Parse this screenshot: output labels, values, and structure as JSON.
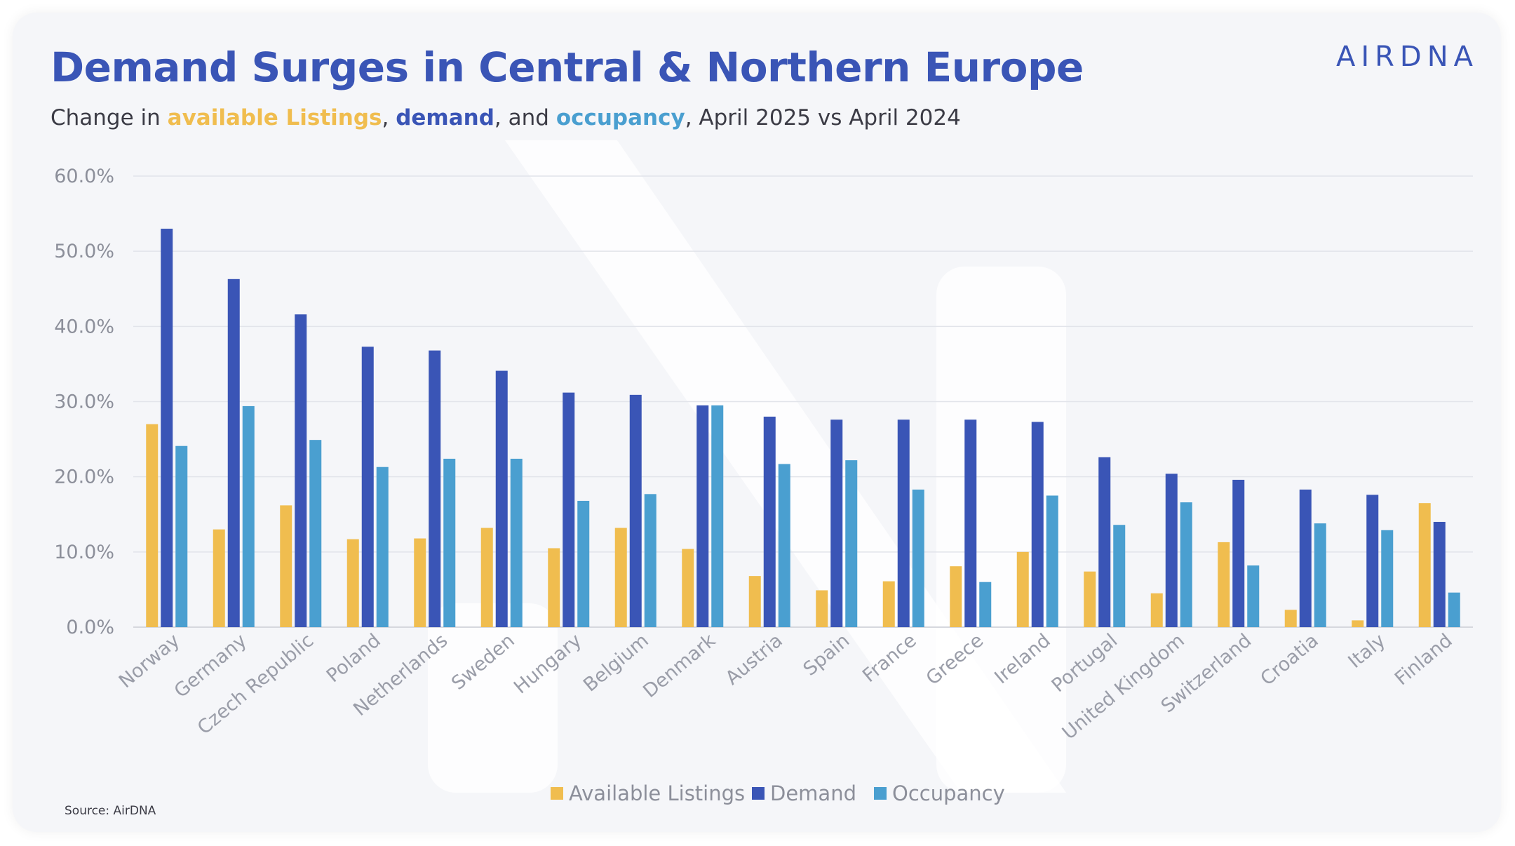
{
  "header": {
    "title": "Demand Surges in Central & Northern Europe",
    "subtitle": {
      "prefix": "Change in ",
      "listings": "available Listings",
      "sep1": ", ",
      "demand": "demand",
      "sep2": ", and ",
      "occupancy": "occupancy",
      "suffix": ", April 2025 vs April 2024"
    },
    "logo": "AIRDNA"
  },
  "footer": {
    "source": "Source: AirDNA"
  },
  "colors": {
    "listings": "#f0bd4f",
    "demand": "#3a55b6",
    "occupancy": "#4a9fd0",
    "title": "#3a55b6"
  },
  "chart_data": {
    "type": "bar",
    "title": "Demand Surges in Central & Northern Europe",
    "subtitle": "Change in available Listings, demand, and occupancy, April 2025 vs April 2024",
    "xlabel": "",
    "ylabel": "",
    "ylim": [
      0,
      60
    ],
    "yticks": [
      "0.0%",
      "10.0%",
      "20.0%",
      "30.0%",
      "40.0%",
      "50.0%",
      "60.0%"
    ],
    "grid": true,
    "legend_position": "bottom",
    "categories": [
      "Norway",
      "Germany",
      "Czech Republic",
      "Poland",
      "Netherlands",
      "Sweden",
      "Hungary",
      "Belgium",
      "Denmark",
      "Austria",
      "Spain",
      "France",
      "Greece",
      "Ireland",
      "Portugal",
      "United Kingdom",
      "Switzerland",
      "Croatia",
      "Italy",
      "Finland"
    ],
    "series": [
      {
        "name": "Available Listings",
        "color": "#f0bd4f",
        "values": [
          27.0,
          13.0,
          16.2,
          11.7,
          11.8,
          13.2,
          10.5,
          13.2,
          10.4,
          6.8,
          4.9,
          6.1,
          8.1,
          10.0,
          7.4,
          4.5,
          11.3,
          2.3,
          0.9,
          16.5
        ]
      },
      {
        "name": "Demand",
        "color": "#3a55b6",
        "values": [
          53.0,
          46.3,
          41.6,
          37.3,
          36.8,
          34.1,
          31.2,
          30.9,
          29.5,
          28.0,
          27.6,
          27.6,
          27.6,
          27.3,
          22.6,
          20.4,
          19.6,
          18.3,
          17.6,
          14.0
        ]
      },
      {
        "name": "Occupancy",
        "color": "#4a9fd0",
        "values": [
          24.1,
          29.4,
          24.9,
          21.3,
          22.4,
          22.4,
          16.8,
          17.7,
          29.5,
          21.7,
          22.2,
          18.3,
          6.0,
          17.5,
          13.6,
          16.6,
          8.2,
          13.8,
          12.9,
          4.6
        ]
      }
    ]
  }
}
